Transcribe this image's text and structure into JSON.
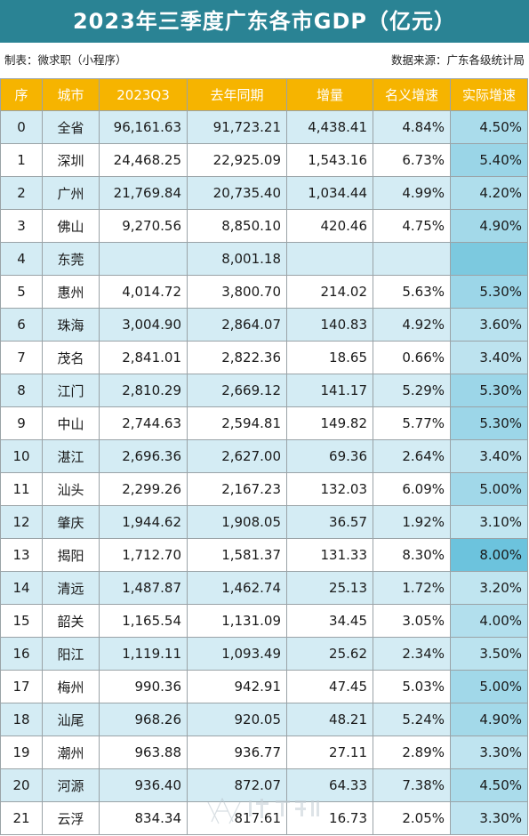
{
  "title": "2023年三季度广东各市GDP（亿元）",
  "maker": "制表：微求职（小程序）",
  "source": "数据来源：广东各级统计局",
  "columns": [
    "序",
    "城市",
    "2023Q3",
    "去年同期",
    "增量",
    "名义增速",
    "实际增速"
  ],
  "colors": {
    "title_bg": "#2a8394",
    "header_bg": "#f6b400",
    "row_alt": "#d4ecf4",
    "real_growth_light": "#dff1f7",
    "real_growth_dark": "#6cc3dd"
  },
  "chart_data": {
    "type": "table",
    "title": "2023年三季度广东各市GDP（亿元）",
    "columns": [
      "序",
      "城市",
      "2023Q3",
      "去年同期",
      "增量",
      "名义增速",
      "实际增速"
    ],
    "rows": [
      {
        "idx": "0",
        "city": "全省",
        "q3": "96,161.63",
        "prev": "91,723.21",
        "inc": "4,438.41",
        "nominal": "4.84%",
        "real": "4.50%",
        "real_value": 4.5
      },
      {
        "idx": "1",
        "city": "深圳",
        "q3": "24,468.25",
        "prev": "22,925.09",
        "inc": "1,543.16",
        "nominal": "6.73%",
        "real": "5.40%",
        "real_value": 5.4
      },
      {
        "idx": "2",
        "city": "广州",
        "q3": "21,769.84",
        "prev": "20,735.40",
        "inc": "1,034.44",
        "nominal": "4.99%",
        "real": "4.20%",
        "real_value": 4.2
      },
      {
        "idx": "3",
        "city": "佛山",
        "q3": "9,270.56",
        "prev": "8,850.10",
        "inc": "420.46",
        "nominal": "4.75%",
        "real": "4.90%",
        "real_value": 4.9
      },
      {
        "idx": "4",
        "city": "东莞",
        "q3": "",
        "prev": "8,001.18",
        "inc": "",
        "nominal": "",
        "real": "",
        "real_value": null
      },
      {
        "idx": "5",
        "city": "惠州",
        "q3": "4,014.72",
        "prev": "3,800.70",
        "inc": "214.02",
        "nominal": "5.63%",
        "real": "5.30%",
        "real_value": 5.3
      },
      {
        "idx": "6",
        "city": "珠海",
        "q3": "3,004.90",
        "prev": "2,864.07",
        "inc": "140.83",
        "nominal": "4.92%",
        "real": "3.60%",
        "real_value": 3.6
      },
      {
        "idx": "7",
        "city": "茂名",
        "q3": "2,841.01",
        "prev": "2,822.36",
        "inc": "18.65",
        "nominal": "0.66%",
        "real": "3.40%",
        "real_value": 3.4
      },
      {
        "idx": "8",
        "city": "江门",
        "q3": "2,810.29",
        "prev": "2,669.12",
        "inc": "141.17",
        "nominal": "5.29%",
        "real": "5.30%",
        "real_value": 5.3
      },
      {
        "idx": "9",
        "city": "中山",
        "q3": "2,744.63",
        "prev": "2,594.81",
        "inc": "149.82",
        "nominal": "5.77%",
        "real": "5.30%",
        "real_value": 5.3
      },
      {
        "idx": "10",
        "city": "湛江",
        "q3": "2,696.36",
        "prev": "2,627.00",
        "inc": "69.36",
        "nominal": "2.64%",
        "real": "3.40%",
        "real_value": 3.4
      },
      {
        "idx": "11",
        "city": "汕头",
        "q3": "2,299.26",
        "prev": "2,167.23",
        "inc": "132.03",
        "nominal": "6.09%",
        "real": "5.00%",
        "real_value": 5.0
      },
      {
        "idx": "12",
        "city": "肇庆",
        "q3": "1,944.62",
        "prev": "1,908.05",
        "inc": "36.57",
        "nominal": "1.92%",
        "real": "3.10%",
        "real_value": 3.1
      },
      {
        "idx": "13",
        "city": "揭阳",
        "q3": "1,712.70",
        "prev": "1,581.37",
        "inc": "131.33",
        "nominal": "8.30%",
        "real": "8.00%",
        "real_value": 8.0
      },
      {
        "idx": "14",
        "city": "清远",
        "q3": "1,487.87",
        "prev": "1,462.74",
        "inc": "25.13",
        "nominal": "1.72%",
        "real": "3.20%",
        "real_value": 3.2
      },
      {
        "idx": "15",
        "city": "韶关",
        "q3": "1,165.54",
        "prev": "1,131.09",
        "inc": "34.45",
        "nominal": "3.05%",
        "real": "4.00%",
        "real_value": 4.0
      },
      {
        "idx": "16",
        "city": "阳江",
        "q3": "1,119.11",
        "prev": "1,093.49",
        "inc": "25.62",
        "nominal": "2.34%",
        "real": "3.50%",
        "real_value": 3.5
      },
      {
        "idx": "17",
        "city": "梅州",
        "q3": "990.36",
        "prev": "942.91",
        "inc": "47.45",
        "nominal": "5.03%",
        "real": "5.00%",
        "real_value": 5.0
      },
      {
        "idx": "18",
        "city": "汕尾",
        "q3": "968.26",
        "prev": "920.05",
        "inc": "48.21",
        "nominal": "5.24%",
        "real": "4.90%",
        "real_value": 4.9
      },
      {
        "idx": "19",
        "city": "潮州",
        "q3": "963.88",
        "prev": "936.77",
        "inc": "27.11",
        "nominal": "2.89%",
        "real": "3.30%",
        "real_value": 3.3
      },
      {
        "idx": "20",
        "city": "河源",
        "q3": "936.40",
        "prev": "872.07",
        "inc": "64.33",
        "nominal": "7.38%",
        "real": "4.50%",
        "real_value": 4.5
      },
      {
        "idx": "21",
        "city": "云浮",
        "q3": "834.34",
        "prev": "817.61",
        "inc": "16.73",
        "nominal": "2.05%",
        "real": "3.30%",
        "real_value": 3.3
      }
    ]
  },
  "watermark": {
    "name": "中国大湾区",
    "url": "WWW.GDMM.COM"
  }
}
